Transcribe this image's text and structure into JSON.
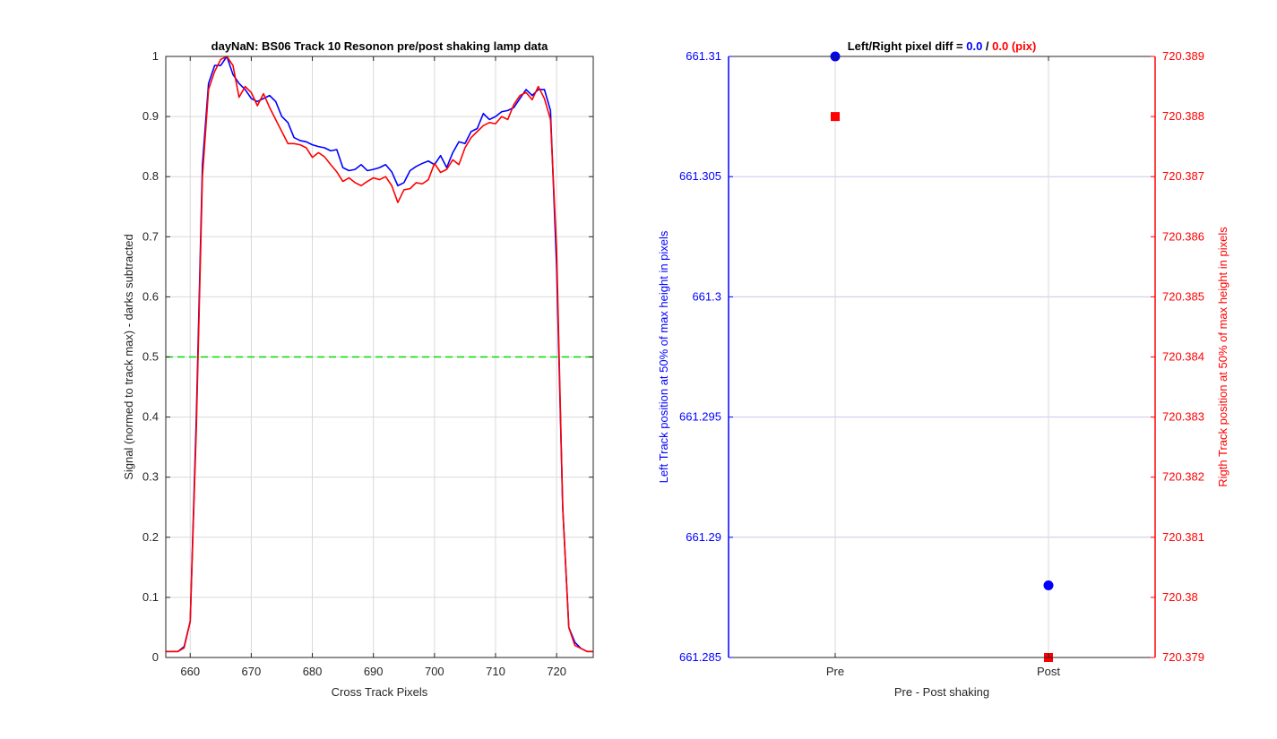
{
  "colors": {
    "pre_series": "#0000ff",
    "post_series": "#ff0000",
    "threshold_line": "#00dd00",
    "grid": "#d9d9d9",
    "axis": "#262626"
  },
  "chart_data": [
    {
      "type": "line",
      "title": "dayNaN: BS06  Track 10 Resonon pre/post shaking lamp data",
      "xlabel": "Cross Track Pixels",
      "ylabel": "Signal (normed to track max) - darks subtracted",
      "xlim": [
        656,
        726
      ],
      "ylim": [
        0,
        1
      ],
      "grid": true,
      "x_ticks": [
        660,
        670,
        680,
        690,
        700,
        710,
        720
      ],
      "y_ticks": [
        0,
        0.1,
        0.2,
        0.3,
        0.4,
        0.5,
        0.6,
        0.7,
        0.8,
        0.9,
        1
      ],
      "x_tick_labels": [
        "660",
        "670",
        "680",
        "690",
        "700",
        "710",
        "720"
      ],
      "y_tick_labels": [
        "0",
        "0.1",
        "0.2",
        "0.3",
        "0.4",
        "0.5",
        "0.6",
        "0.7",
        "0.8",
        "0.9",
        "1"
      ],
      "threshold": 0.5,
      "x": [
        656,
        657,
        658,
        659,
        660,
        661,
        662,
        663,
        664,
        665,
        666,
        667,
        668,
        669,
        670,
        671,
        672,
        673,
        674,
        675,
        676,
        677,
        678,
        679,
        680,
        681,
        682,
        683,
        684,
        685,
        686,
        687,
        688,
        689,
        690,
        691,
        692,
        693,
        694,
        695,
        696,
        697,
        698,
        699,
        700,
        701,
        702,
        703,
        704,
        705,
        706,
        707,
        708,
        709,
        710,
        711,
        712,
        713,
        714,
        715,
        716,
        717,
        718,
        719,
        720,
        721,
        722,
        723,
        724,
        725,
        726
      ],
      "series": [
        {
          "color": "#0000ff",
          "values": [
            0.01,
            0.01,
            0.01,
            0.018,
            0.06,
            0.4,
            0.82,
            0.955,
            0.985,
            0.985,
            1.0,
            0.97,
            0.955,
            0.945,
            0.93,
            0.925,
            0.93,
            0.935,
            0.925,
            0.9,
            0.89,
            0.865,
            0.86,
            0.858,
            0.853,
            0.85,
            0.848,
            0.843,
            0.845,
            0.815,
            0.81,
            0.812,
            0.82,
            0.81,
            0.812,
            0.815,
            0.82,
            0.808,
            0.785,
            0.79,
            0.81,
            0.817,
            0.822,
            0.826,
            0.82,
            0.835,
            0.815,
            0.84,
            0.858,
            0.855,
            0.875,
            0.88,
            0.905,
            0.895,
            0.9,
            0.908,
            0.91,
            0.915,
            0.93,
            0.945,
            0.935,
            0.945,
            0.945,
            0.91,
            0.65,
            0.25,
            0.05,
            0.025,
            0.015,
            0.01,
            0.01
          ]
        },
        {
          "color": "#ff0000",
          "values": [
            0.01,
            0.01,
            0.01,
            0.016,
            0.06,
            0.38,
            0.8,
            0.945,
            0.975,
            0.995,
            1.0,
            0.985,
            0.932,
            0.95,
            0.94,
            0.918,
            0.938,
            0.915,
            0.895,
            0.875,
            0.855,
            0.855,
            0.853,
            0.848,
            0.832,
            0.84,
            0.833,
            0.82,
            0.808,
            0.792,
            0.798,
            0.79,
            0.785,
            0.792,
            0.798,
            0.795,
            0.8,
            0.785,
            0.757,
            0.778,
            0.78,
            0.79,
            0.788,
            0.795,
            0.822,
            0.807,
            0.812,
            0.828,
            0.82,
            0.848,
            0.865,
            0.875,
            0.885,
            0.89,
            0.888,
            0.9,
            0.895,
            0.92,
            0.935,
            0.94,
            0.928,
            0.95,
            0.93,
            0.895,
            0.68,
            0.25,
            0.05,
            0.02,
            0.015,
            0.01,
            0.01
          ]
        }
      ]
    },
    {
      "type": "scatter",
      "title_parts": [
        "Left/Right pixel diff = ",
        "0.0",
        " / ",
        "0.0 (pix)"
      ],
      "xlabel": "Pre - Post shaking",
      "ylabel_left": "Left Track position at 50% of max height in pixels",
      "ylabel_right": "Rigth Track position at 50% of max height in pixels",
      "categories": [
        "Pre",
        "Post"
      ],
      "ylim_left": [
        661.285,
        661.31
      ],
      "ylim_right": [
        720.379,
        720.389
      ],
      "y_ticks_left": [
        661.285,
        661.29,
        661.295,
        661.3,
        661.305,
        661.31
      ],
      "y_tick_labels_left": [
        "661.285",
        "661.29",
        "661.295",
        "661.3",
        "661.305",
        "661.31"
      ],
      "y_ticks_right": [
        720.379,
        720.38,
        720.381,
        720.382,
        720.383,
        720.384,
        720.385,
        720.386,
        720.387,
        720.388,
        720.389
      ],
      "y_tick_labels_right": [
        "720.379",
        "720.38",
        "720.381",
        "720.382",
        "720.383",
        "720.384",
        "720.385",
        "720.386",
        "720.387",
        "720.388",
        "720.389"
      ],
      "grid": true,
      "series": [
        {
          "axis": "left",
          "marker": "circle",
          "color": "#0000ff",
          "values": [
            661.31,
            661.288
          ]
        },
        {
          "axis": "right",
          "marker": "square",
          "color": "#ff0000",
          "values": [
            720.388,
            720.379
          ]
        }
      ]
    }
  ]
}
